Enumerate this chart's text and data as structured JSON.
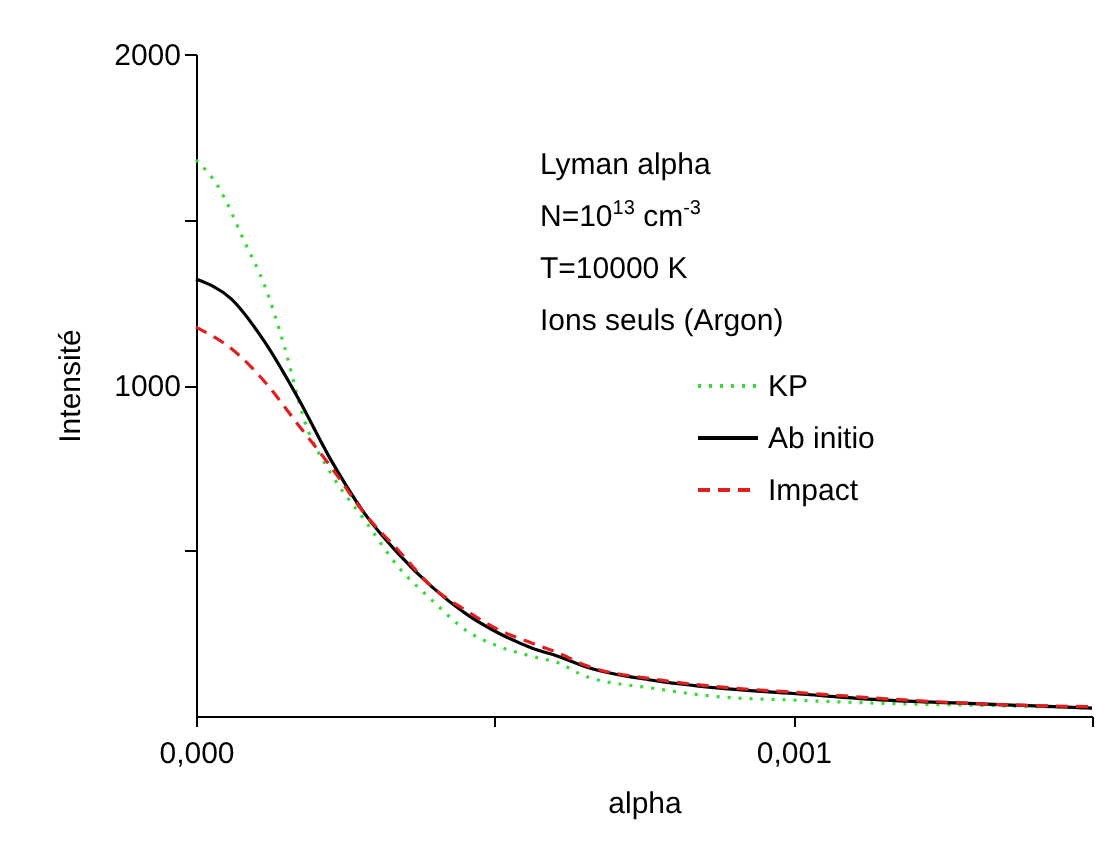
{
  "chart_data": {
    "type": "line",
    "xlabel": "alpha",
    "ylabel": "Intensité",
    "annotations": [
      "Lyman alpha",
      "N=10$^{13}$ cm$^{-3}$",
      "T=10000 K",
      "Ions seuls (Argon)"
    ],
    "xlim": [
      0,
      0.0015
    ],
    "xticks": [
      {
        "value": 0,
        "label": "0,000"
      },
      {
        "value": 0.0005,
        "label": null
      },
      {
        "value": 0.001,
        "label": "0,001"
      },
      {
        "value": 0.0015,
        "label": null
      }
    ],
    "ylim": [
      0,
      2000
    ],
    "yticks": [
      {
        "value": 500,
        "label": null
      },
      1000,
      {
        "value": 1500,
        "label": null
      },
      2000
    ],
    "grid": false,
    "legend": "right",
    "series": [
      {
        "name": "KP",
        "color": "#33dd33",
        "line_style": "dotted",
        "x": [
          0,
          3.7e-05,
          8.2e-05,
          0.000115,
          0.000149,
          0.000182,
          0.000227,
          0.000283,
          0.000339,
          0.000395,
          0.000451,
          0.000507,
          0.000563,
          0.000607,
          0.000652,
          0.000764,
          0.000876,
          0.001,
          0.001155,
          0.001323,
          0.0015
        ],
        "values": [
          1680,
          1600,
          1430,
          1300,
          1110,
          890,
          730,
          590,
          450,
          350,
          260,
          210,
          180,
          160,
          120,
          84,
          58,
          48,
          38,
          32,
          24
        ]
      },
      {
        "name": "Ab initio",
        "color": "#000000",
        "line_style": "solid",
        "x": [
          0,
          5.9e-05,
          0.000115,
          0.000171,
          0.000227,
          0.000283,
          0.000339,
          0.000395,
          0.000451,
          0.000507,
          0.000563,
          0.000607,
          0.000652,
          0.000764,
          0.000876,
          0.001,
          0.001155,
          0.001323,
          0.0015
        ],
        "values": [
          1320,
          1260,
          1130,
          960,
          770,
          610,
          490,
          390,
          310,
          250,
          205,
          180,
          149,
          108,
          84,
          68,
          48,
          36,
          24
        ]
      },
      {
        "name": "Impact",
        "color": "#e02020",
        "line_style": "dashed",
        "x": [
          0,
          5.9e-05,
          0.000115,
          0.000171,
          0.000227,
          0.000283,
          0.000339,
          0.000395,
          0.000451,
          0.000507,
          0.000563,
          0.000607,
          0.000652,
          0.000764,
          0.000876,
          0.001,
          0.001155,
          0.001323,
          0.0015
        ],
        "values": [
          1175,
          1110,
          1010,
          880,
          750,
          610,
          500,
          390,
          320,
          260,
          220,
          190,
          153,
          112,
          88,
          72,
          52,
          36,
          28
        ]
      }
    ]
  }
}
